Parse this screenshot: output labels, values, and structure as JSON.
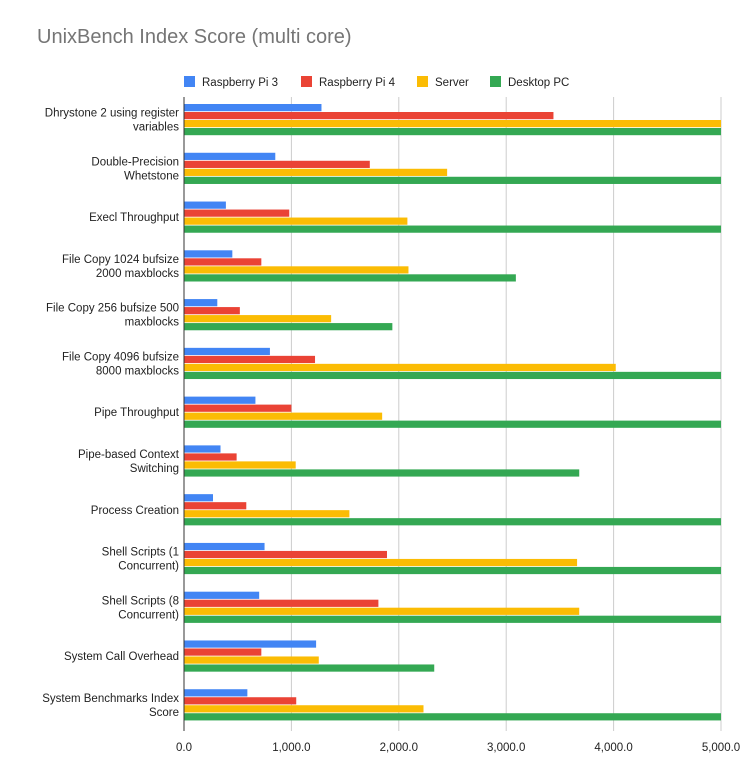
{
  "chart_data": {
    "type": "bar",
    "orientation": "horizontal",
    "title": "UnixBench Index Score (multi core)",
    "xlabel": "",
    "ylabel": "",
    "xlim": [
      0,
      5000
    ],
    "x_ticks": [
      0,
      1000,
      2000,
      3000,
      4000,
      5000
    ],
    "x_tick_labels": [
      "0.0",
      "1,000.0",
      "2,000.0",
      "3,000.0",
      "4,000.0",
      "5,000.0"
    ],
    "grid": true,
    "legend_position": "top",
    "categories": [
      [
        "Dhrystone 2 using register",
        "variables"
      ],
      [
        "Double-Precision",
        "Whetstone"
      ],
      [
        "Execl Throughput"
      ],
      [
        "File Copy 1024 bufsize",
        "2000 maxblocks"
      ],
      [
        "File Copy 256 bufsize 500",
        "maxblocks"
      ],
      [
        "File Copy 4096 bufsize",
        "8000 maxblocks"
      ],
      [
        "Pipe Throughput"
      ],
      [
        "Pipe-based Context",
        "Switching"
      ],
      [
        "Process Creation"
      ],
      [
        "Shell Scripts (1",
        "Concurrent)"
      ],
      [
        "Shell Scripts (8",
        "Concurrent)"
      ],
      [
        "System Call Overhead"
      ],
      [
        "System Benchmarks Index",
        "Score"
      ]
    ],
    "series": [
      {
        "name": "Raspberry Pi 3",
        "color": "#4285F4",
        "values": [
          1280,
          850,
          390,
          450,
          310,
          800,
          665,
          340,
          270,
          750,
          700,
          1230,
          590
        ]
      },
      {
        "name": "Raspberry Pi 4",
        "color": "#EA4335",
        "values": [
          3440,
          1730,
          980,
          720,
          520,
          1220,
          1000,
          490,
          580,
          1890,
          1810,
          720,
          1045
        ]
      },
      {
        "name": "Server",
        "color": "#FBBC04",
        "values": [
          5000,
          2450,
          2080,
          2090,
          1370,
          4020,
          1845,
          1040,
          1540,
          3660,
          3680,
          1255,
          2230
        ]
      },
      {
        "name": "Desktop PC",
        "color": "#34A853",
        "values": [
          5000,
          5000,
          5000,
          3090,
          1940,
          5000,
          5000,
          3680,
          5000,
          5000,
          5000,
          2330,
          5000
        ]
      }
    ]
  }
}
